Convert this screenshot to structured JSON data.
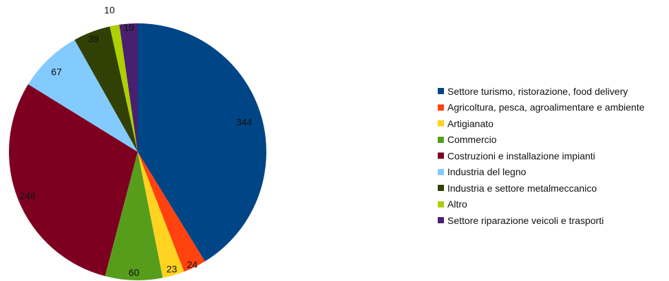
{
  "chart_data": {
    "type": "pie",
    "title": "",
    "legend_position": "right",
    "start_angle_deg": 0,
    "direction": "clockwise",
    "slices": [
      {
        "label": "Settore turismo, ristorazione, food delivery",
        "value": 344,
        "color": "#004586"
      },
      {
        "label": "Agricoltura, pesca, agroalimentare e ambiente",
        "value": 24,
        "color": "#ff420e"
      },
      {
        "label": "Artigianato",
        "value": 23,
        "color": "#ffd320"
      },
      {
        "label": "Commercio",
        "value": 60,
        "color": "#579d1c"
      },
      {
        "label": "Costruzioni e installazione impianti",
        "value": 248,
        "color": "#7e0021"
      },
      {
        "label": "Industria del legno",
        "value": 67,
        "color": "#83caff"
      },
      {
        "label": "Industria e settore metalmeccanico",
        "value": 39,
        "color": "#314004"
      },
      {
        "label": "Altro",
        "value": 10,
        "color": "#aecf00"
      },
      {
        "label": "Settore riparazione veicoli e trasporti",
        "value": 19,
        "color": "#4b1f6f"
      }
    ]
  }
}
